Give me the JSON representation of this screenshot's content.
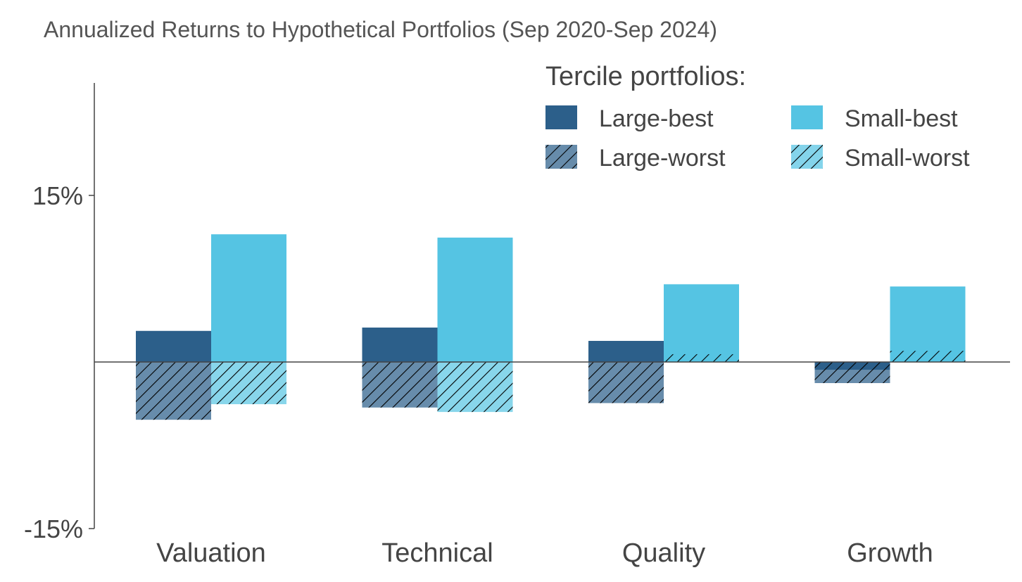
{
  "chart_data": {
    "type": "bar",
    "title": "Annualized Returns to Hypothetical Portfolios (Sep 2020-Sep 2024)",
    "xlabel": "",
    "ylabel": "",
    "categories": [
      "Valuation",
      "Technical",
      "Quality",
      "Growth"
    ],
    "ylim": [
      -15,
      20
    ],
    "yticks": [
      15,
      -15
    ],
    "ytick_labels": [
      "15%",
      "-15%"
    ],
    "grid": false,
    "zero_line": true,
    "legend": {
      "title": "Tercile portfolios:",
      "position": "top-right",
      "columns": 2
    },
    "series": [
      {
        "name": "Large-best",
        "color": "#2c5f8a",
        "hatch": false,
        "values": [
          2.8,
          3.1,
          1.9,
          -0.7
        ]
      },
      {
        "name": "Small-best",
        "color": "#55c4e3",
        "hatch": false,
        "values": [
          11.5,
          11.2,
          7.0,
          6.8
        ]
      },
      {
        "name": "Large-worst",
        "color": "#2c5f8a",
        "hatch": true,
        "values": [
          -5.2,
          -4.1,
          -3.7,
          -1.9
        ]
      },
      {
        "name": "Small-worst",
        "color": "#55c4e3",
        "hatch": true,
        "values": [
          -3.8,
          -4.5,
          0.7,
          1.0
        ]
      }
    ]
  }
}
